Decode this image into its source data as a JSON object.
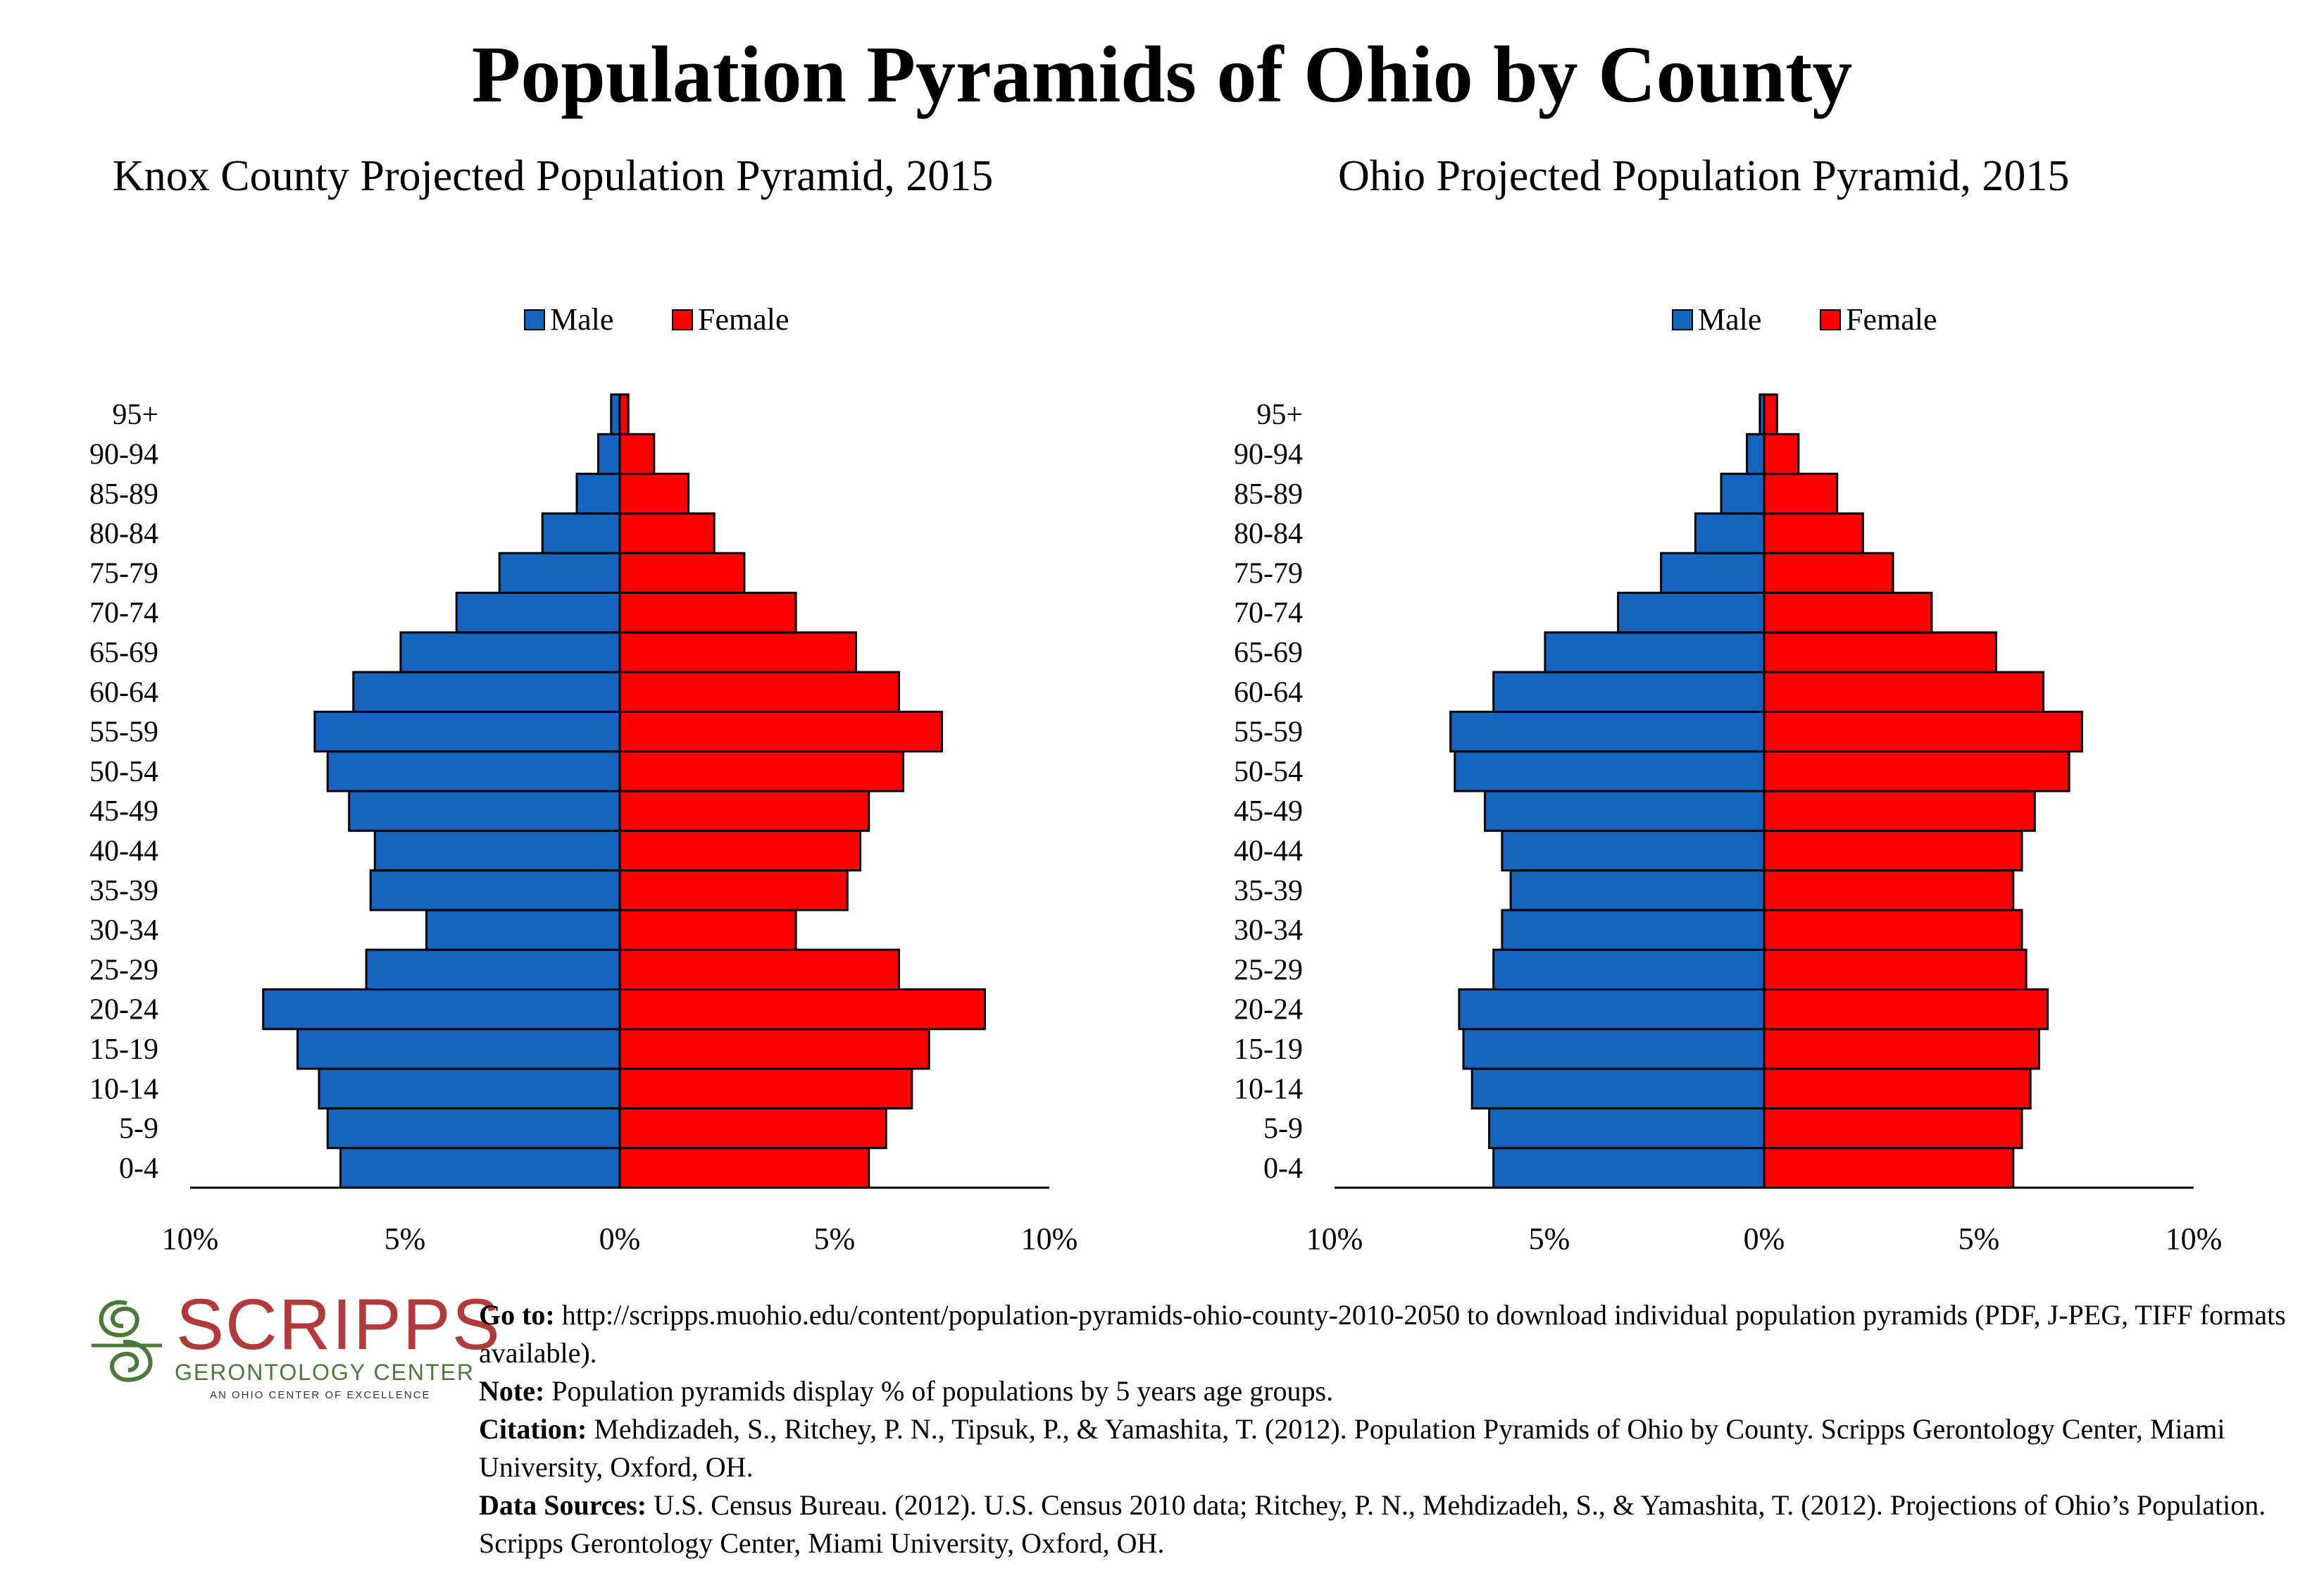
{
  "title": "Population Pyramids of Ohio by County",
  "colors": {
    "male": "#1565C0",
    "female": "#FF0000",
    "logo_red": "#b23a3a",
    "logo_green": "#4a7a3a"
  },
  "chart_data": [
    {
      "type": "bar",
      "orientation": "horizontal-pyramid",
      "title": "Knox County Projected Population Pyramid, 2015",
      "categories": [
        "0-4",
        "5-9",
        "10-14",
        "15-19",
        "20-24",
        "25-29",
        "30-34",
        "35-39",
        "40-44",
        "45-49",
        "50-54",
        "55-59",
        "60-64",
        "65-69",
        "70-74",
        "75-79",
        "80-84",
        "85-89",
        "90-94",
        "95+"
      ],
      "series": [
        {
          "name": "Male",
          "values": [
            6.5,
            6.8,
            7.0,
            7.5,
            8.3,
            5.9,
            4.5,
            5.8,
            5.7,
            6.3,
            6.8,
            7.1,
            6.2,
            5.1,
            3.8,
            2.8,
            1.8,
            1.0,
            0.5,
            0.2
          ]
        },
        {
          "name": "Female",
          "values": [
            5.8,
            6.2,
            6.8,
            7.2,
            8.5,
            6.5,
            4.1,
            5.3,
            5.6,
            5.8,
            6.6,
            7.5,
            6.5,
            5.5,
            4.1,
            2.9,
            2.2,
            1.6,
            0.8,
            0.2
          ]
        }
      ],
      "xlim": [
        -10,
        10
      ],
      "x_tick_labels": [
        "10%",
        "5%",
        "0%",
        "5%",
        "10%"
      ],
      "legend": {
        "position": "top-center",
        "labels": [
          "Male",
          "Female"
        ]
      }
    },
    {
      "type": "bar",
      "orientation": "horizontal-pyramid",
      "title": "Ohio Projected Population Pyramid, 2015",
      "categories": [
        "0-4",
        "5-9",
        "10-14",
        "15-19",
        "20-24",
        "25-29",
        "30-34",
        "35-39",
        "40-44",
        "45-49",
        "50-54",
        "55-59",
        "60-64",
        "65-69",
        "70-74",
        "75-79",
        "80-84",
        "85-89",
        "90-94",
        "95+"
      ],
      "series": [
        {
          "name": "Male",
          "values": [
            6.3,
            6.4,
            6.8,
            7.0,
            7.1,
            6.3,
            6.1,
            5.9,
            6.1,
            6.5,
            7.2,
            7.3,
            6.3,
            5.1,
            3.4,
            2.4,
            1.6,
            1.0,
            0.4,
            0.1
          ]
        },
        {
          "name": "Female",
          "values": [
            5.8,
            6.0,
            6.2,
            6.4,
            6.6,
            6.1,
            6.0,
            5.8,
            6.0,
            6.3,
            7.1,
            7.4,
            6.5,
            5.4,
            3.9,
            3.0,
            2.3,
            1.7,
            0.8,
            0.3
          ]
        }
      ],
      "xlim": [
        -10,
        10
      ],
      "x_tick_labels": [
        "10%",
        "5%",
        "0%",
        "5%",
        "10%"
      ],
      "legend": {
        "position": "top-center",
        "labels": [
          "Male",
          "Female"
        ]
      }
    }
  ],
  "logo": {
    "word": "SCRIPPS",
    "subtitle": "GERONTOLOGY CENTER",
    "tagline": "AN OHIO CENTER OF EXCELLENCE"
  },
  "notes": {
    "goto_label": "Go to:",
    "goto_text": " http://scripps.muohio.edu/content/population-pyramids-ohio-county-2010-2050 to download individual population pyramids (PDF, J-PEG, TIFF formats available).",
    "note_label": "Note:",
    "note_text": " Population pyramids display % of populations by 5 years age groups.",
    "citation_label": "Citation:",
    "citation_text": " Mehdizadeh, S., Ritchey, P. N., Tipsuk, P., & Yamashita, T. (2012). Population Pyramids of Ohio by County. Scripps Gerontology Center, Miami University, Oxford, OH.",
    "sources_label": "Data Sources:",
    "sources_text": " U.S. Census Bureau. (2012). U.S. Census 2010 data; Ritchey, P. N., Mehdizadeh, S., & Yamashita, T. (2012). Projections of Ohio’s Population. Scripps Gerontology Center, Miami University, Oxford, OH."
  }
}
